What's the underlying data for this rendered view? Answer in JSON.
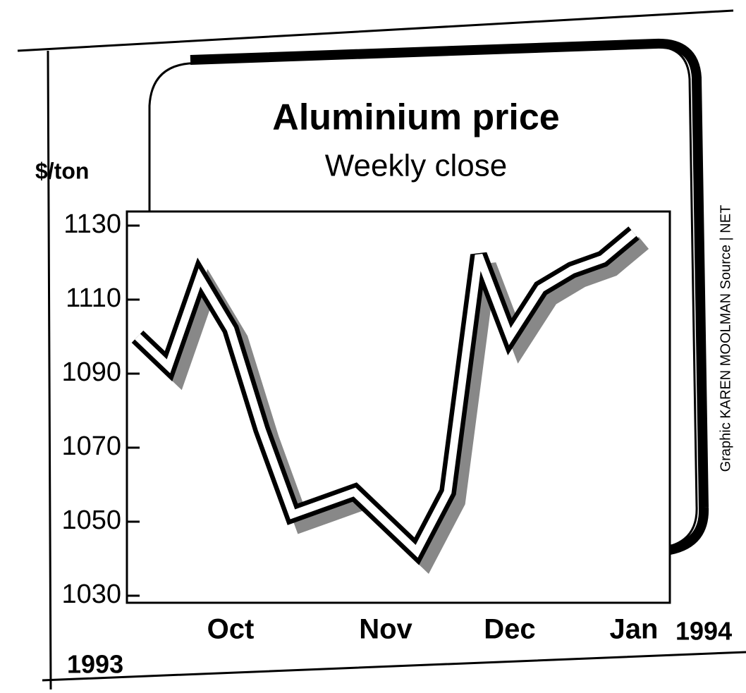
{
  "chart_data": {
    "type": "line",
    "title": "Aluminium price",
    "subtitle": "Weekly close",
    "y_label": "$/ton",
    "categories": [
      null,
      null,
      null,
      "Oct",
      null,
      null,
      null,
      null,
      "Nov",
      null,
      null,
      null,
      "Dec",
      null,
      null,
      null,
      "Jan"
    ],
    "values": [
      1100,
      1092,
      1116,
      1102,
      1075,
      1052,
      1055,
      1058,
      1050,
      1042,
      1058,
      1122,
      1100,
      1113,
      1118,
      1121,
      1128
    ],
    "x_year_labels": [
      "1993",
      "1994"
    ],
    "credit": "Graphic  KAREN MOOLMAN   Source  |  NET",
    "color": "#000000",
    "ylim": [
      1030,
      1130
    ],
    "yticks": [
      1030,
      1050,
      1070,
      1090,
      1110,
      1130
    ]
  }
}
